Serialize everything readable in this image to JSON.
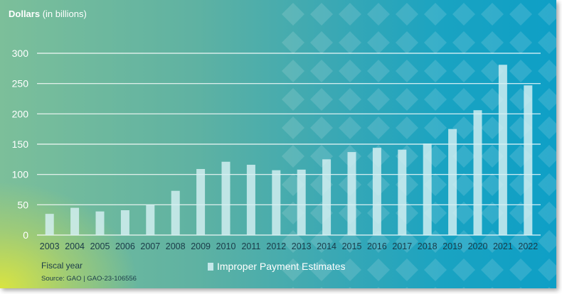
{
  "header": {
    "ylabel_bold": "Dollars",
    "ylabel_rest": " (in billions)"
  },
  "footer": {
    "xtitle": "Fiscal year",
    "source": "Source: GAO | GAO-23-106556"
  },
  "legend": {
    "label": "Improper Payment Estimates"
  },
  "colors": {
    "bar": "#d6f0f3",
    "grid": "#ffffff",
    "text": "#ffffff"
  },
  "chart_data": {
    "type": "bar",
    "categories": [
      "2003",
      "2004",
      "2005",
      "2006",
      "2007",
      "2008",
      "2009",
      "2010",
      "2011",
      "2012",
      "2013",
      "2014",
      "2015",
      "2016",
      "2017",
      "2018",
      "2019",
      "2020",
      "2021",
      "2022"
    ],
    "series": [
      {
        "name": "Improper Payment Estimates",
        "values": [
          35,
          45,
          39,
          41,
          50,
          73,
          109,
          121,
          116,
          107,
          108,
          125,
          137,
          144,
          141,
          151,
          175,
          206,
          281,
          247
        ]
      }
    ],
    "ylim": [
      0,
      300
    ],
    "yticks": [
      0,
      50,
      100,
      150,
      200,
      250,
      300
    ],
    "ylabel": "Dollars (in billions)",
    "xlabel": "Fiscal year",
    "grid": true,
    "legend_position": "bottom"
  }
}
